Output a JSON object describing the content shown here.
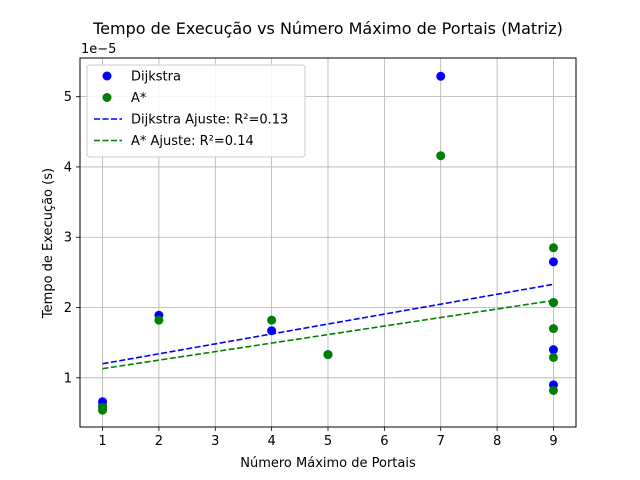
{
  "chart_data": {
    "type": "scatter",
    "title": "Tempo de Execução vs Número Máximo de Portais (Matriz)",
    "xlabel": "Número Máximo de Portais",
    "ylabel": "Tempo de Execução (s)",
    "y_offset_text": "1e−5",
    "xlim": [
      0.6,
      9.4
    ],
    "ylim": [
      0.3,
      5.55
    ],
    "y_scale_note": "values in units of 1e-5 s",
    "grid": true,
    "legend_position": "upper-left",
    "x_ticks": [
      "1",
      "2",
      "3",
      "4",
      "5",
      "6",
      "7",
      "8",
      "9"
    ],
    "y_ticks": [
      "1",
      "2",
      "3",
      "4",
      "5"
    ],
    "series": [
      {
        "name": "Dijkstra",
        "kind": "scatter",
        "color": "#0000ff",
        "points": [
          {
            "x": 1,
            "y": 0.66
          },
          {
            "x": 1,
            "y": 0.6
          },
          {
            "x": 2,
            "y": 1.89
          },
          {
            "x": 4,
            "y": 1.67
          },
          {
            "x": 5,
            "y": 1.33
          },
          {
            "x": 7,
            "y": 5.29
          },
          {
            "x": 9,
            "y": 2.65
          },
          {
            "x": 9,
            "y": 2.07
          },
          {
            "x": 9,
            "y": 1.4
          },
          {
            "x": 9,
            "y": 0.9
          }
        ]
      },
      {
        "name": "A*",
        "kind": "scatter",
        "color": "#008000",
        "points": [
          {
            "x": 1,
            "y": 0.54
          },
          {
            "x": 1,
            "y": 0.58
          },
          {
            "x": 2,
            "y": 1.82
          },
          {
            "x": 4,
            "y": 1.82
          },
          {
            "x": 5,
            "y": 1.33
          },
          {
            "x": 7,
            "y": 4.16
          },
          {
            "x": 9,
            "y": 2.85
          },
          {
            "x": 9,
            "y": 2.07
          },
          {
            "x": 9,
            "y": 1.7
          },
          {
            "x": 9,
            "y": 1.29
          },
          {
            "x": 9,
            "y": 0.82
          }
        ]
      },
      {
        "name": "Dijkstra Ajuste: R²=0.13",
        "kind": "line",
        "dashed": true,
        "color": "#0000ff",
        "points": [
          {
            "x": 1,
            "y": 1.2
          },
          {
            "x": 9,
            "y": 2.33
          }
        ]
      },
      {
        "name": "A* Ajuste: R²=0.14",
        "kind": "line",
        "dashed": true,
        "color": "#008000",
        "points": [
          {
            "x": 1,
            "y": 1.13
          },
          {
            "x": 9,
            "y": 2.1
          }
        ]
      }
    ]
  }
}
